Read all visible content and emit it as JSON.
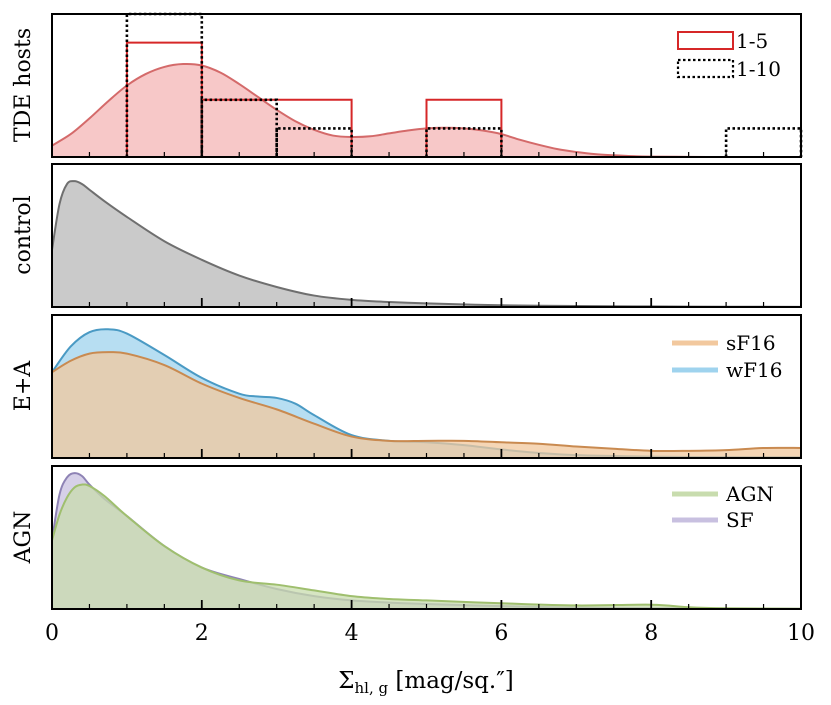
{
  "chart_data": [
    {
      "type": "area",
      "panel": "TDE hosts",
      "ylabel": "TDE hosts",
      "xlim": [
        0,
        10
      ],
      "ylim": [
        0,
        1.0
      ],
      "kde": {
        "name": "TDE hosts",
        "color": "#d46a6a",
        "fill": "#f4b6b6",
        "x": [
          0,
          0.25,
          0.5,
          0.75,
          1.0,
          1.25,
          1.5,
          1.75,
          2.0,
          2.25,
          2.5,
          2.75,
          3.0,
          3.25,
          3.5,
          3.75,
          4.0,
          4.25,
          4.5,
          4.75,
          5.0,
          5.25,
          5.5,
          5.75,
          6.0,
          6.25,
          6.5,
          6.75,
          7.0,
          7.25,
          7.5,
          7.75,
          8.0,
          8.5,
          9.0,
          9.5,
          10.0
        ],
        "y": [
          0.08,
          0.16,
          0.27,
          0.39,
          0.5,
          0.58,
          0.63,
          0.65,
          0.64,
          0.59,
          0.51,
          0.42,
          0.33,
          0.25,
          0.19,
          0.15,
          0.14,
          0.145,
          0.165,
          0.185,
          0.2,
          0.205,
          0.2,
          0.185,
          0.16,
          0.12,
          0.085,
          0.055,
          0.035,
          0.02,
          0.012,
          0.006,
          0.003,
          0.001,
          0,
          0,
          0
        ]
      },
      "histograms": [
        {
          "name": "1-5",
          "style": "solid",
          "color": "#d62728",
          "bins": [
            [
              1,
              2,
              0.8
            ],
            [
              2,
              4,
              0.4
            ],
            [
              5,
              6,
              0.4
            ]
          ]
        },
        {
          "name": "1-10",
          "style": "dotted",
          "color": "#000000",
          "bins": [
            [
              1,
              2,
              1.0
            ],
            [
              2,
              3,
              0.4
            ],
            [
              3,
              4,
              0.2
            ],
            [
              5,
              6,
              0.2
            ],
            [
              9,
              10,
              0.2
            ]
          ]
        }
      ],
      "legend": {
        "position": "top-right",
        "entries": [
          "1-5",
          "1-10"
        ]
      }
    },
    {
      "type": "area",
      "panel": "control",
      "ylabel": "control",
      "xlim": [
        0,
        10
      ],
      "ylim": [
        0,
        1.0
      ],
      "series": [
        {
          "name": "control",
          "color": "#6f6f6f",
          "fill": "#b8b8b8",
          "x": [
            0,
            0.1,
            0.2,
            0.3,
            0.4,
            0.5,
            0.7,
            1.0,
            1.5,
            2.0,
            2.5,
            3.0,
            3.5,
            4.0,
            4.5,
            5.0,
            6.0,
            7.0,
            8.0,
            9.0,
            10.0
          ],
          "y": [
            0.4,
            0.72,
            0.86,
            0.88,
            0.86,
            0.82,
            0.74,
            0.63,
            0.46,
            0.33,
            0.22,
            0.14,
            0.08,
            0.05,
            0.035,
            0.025,
            0.012,
            0.007,
            0.004,
            0.002,
            0.001
          ]
        }
      ]
    },
    {
      "type": "area",
      "panel": "E+A",
      "ylabel": "E+A",
      "xlim": [
        0,
        10
      ],
      "ylim": [
        0,
        1.0
      ],
      "series": [
        {
          "name": "wF16",
          "color": "#4a9ac4",
          "fill": "#9fd3ee",
          "x": [
            0,
            0.25,
            0.5,
            0.75,
            1.0,
            1.5,
            2.0,
            2.5,
            2.75,
            3.0,
            3.25,
            3.5,
            4.0,
            4.5,
            5.0,
            5.5,
            6.0,
            6.5,
            7.0,
            8.0,
            9.0,
            10.0
          ],
          "y": [
            0.6,
            0.78,
            0.88,
            0.9,
            0.87,
            0.72,
            0.56,
            0.45,
            0.43,
            0.42,
            0.38,
            0.3,
            0.16,
            0.12,
            0.11,
            0.09,
            0.06,
            0.035,
            0.02,
            0.01,
            0.006,
            0.005
          ]
        },
        {
          "name": "sF16",
          "color": "#c98a50",
          "fill": "#f2c89e",
          "x": [
            0,
            0.25,
            0.5,
            0.75,
            1.0,
            1.5,
            2.0,
            2.5,
            3.0,
            3.5,
            4.0,
            4.5,
            5.0,
            5.5,
            6.0,
            6.5,
            7.0,
            7.5,
            8.0,
            8.5,
            9.0,
            9.5,
            10.0
          ],
          "y": [
            0.6,
            0.68,
            0.73,
            0.74,
            0.73,
            0.65,
            0.52,
            0.42,
            0.34,
            0.24,
            0.15,
            0.12,
            0.12,
            0.12,
            0.11,
            0.1,
            0.08,
            0.065,
            0.05,
            0.05,
            0.055,
            0.07,
            0.07
          ]
        }
      ],
      "legend": {
        "position": "top-right",
        "entries": [
          "sF16",
          "wF16"
        ]
      }
    },
    {
      "type": "area",
      "panel": "AGN",
      "ylabel": "AGN",
      "xlabel": "Σhl, g [mag/sq.″]",
      "xlim": [
        0,
        10
      ],
      "ylim": [
        0,
        1.0
      ],
      "xticks": [
        0,
        2,
        4,
        6,
        8,
        10
      ],
      "series": [
        {
          "name": "SF",
          "color": "#8e83b5",
          "fill": "#c8c0e0",
          "x": [
            0,
            0.1,
            0.2,
            0.3,
            0.4,
            0.5,
            0.7,
            1.0,
            1.5,
            2.0,
            2.5,
            3.0,
            3.5,
            4.0,
            4.5,
            5.0,
            6.0,
            7.0,
            8.0,
            9.0,
            10.0
          ],
          "y": [
            0.48,
            0.8,
            0.92,
            0.95,
            0.93,
            0.87,
            0.77,
            0.65,
            0.44,
            0.29,
            0.21,
            0.14,
            0.09,
            0.06,
            0.045,
            0.035,
            0.02,
            0.01,
            0.006,
            0.003,
            0.001
          ]
        },
        {
          "name": "AGN",
          "color": "#9fbf6e",
          "fill": "#c8dcae",
          "x": [
            0,
            0.1,
            0.2,
            0.3,
            0.4,
            0.5,
            0.7,
            1.0,
            1.5,
            2.0,
            2.5,
            3.0,
            3.5,
            4.0,
            4.5,
            5.0,
            6.0,
            7.0,
            8.0,
            8.5,
            9.0,
            10.0
          ],
          "y": [
            0.48,
            0.66,
            0.78,
            0.85,
            0.87,
            0.86,
            0.79,
            0.65,
            0.44,
            0.29,
            0.2,
            0.17,
            0.13,
            0.09,
            0.07,
            0.06,
            0.04,
            0.025,
            0.03,
            0.012,
            0.005,
            0.002
          ]
        }
      ],
      "legend": {
        "position": "top-right",
        "entries": [
          "AGN",
          "SF"
        ]
      }
    }
  ],
  "xaxis": {
    "label_main": "Σ",
    "label_sub": "hl, g",
    "label_rest": " [mag/sq.″]",
    "tick_labels": [
      "0",
      "2",
      "4",
      "6",
      "8",
      "10"
    ]
  },
  "panel_labels": [
    "TDE hosts",
    "control",
    "E+A",
    "AGN"
  ]
}
